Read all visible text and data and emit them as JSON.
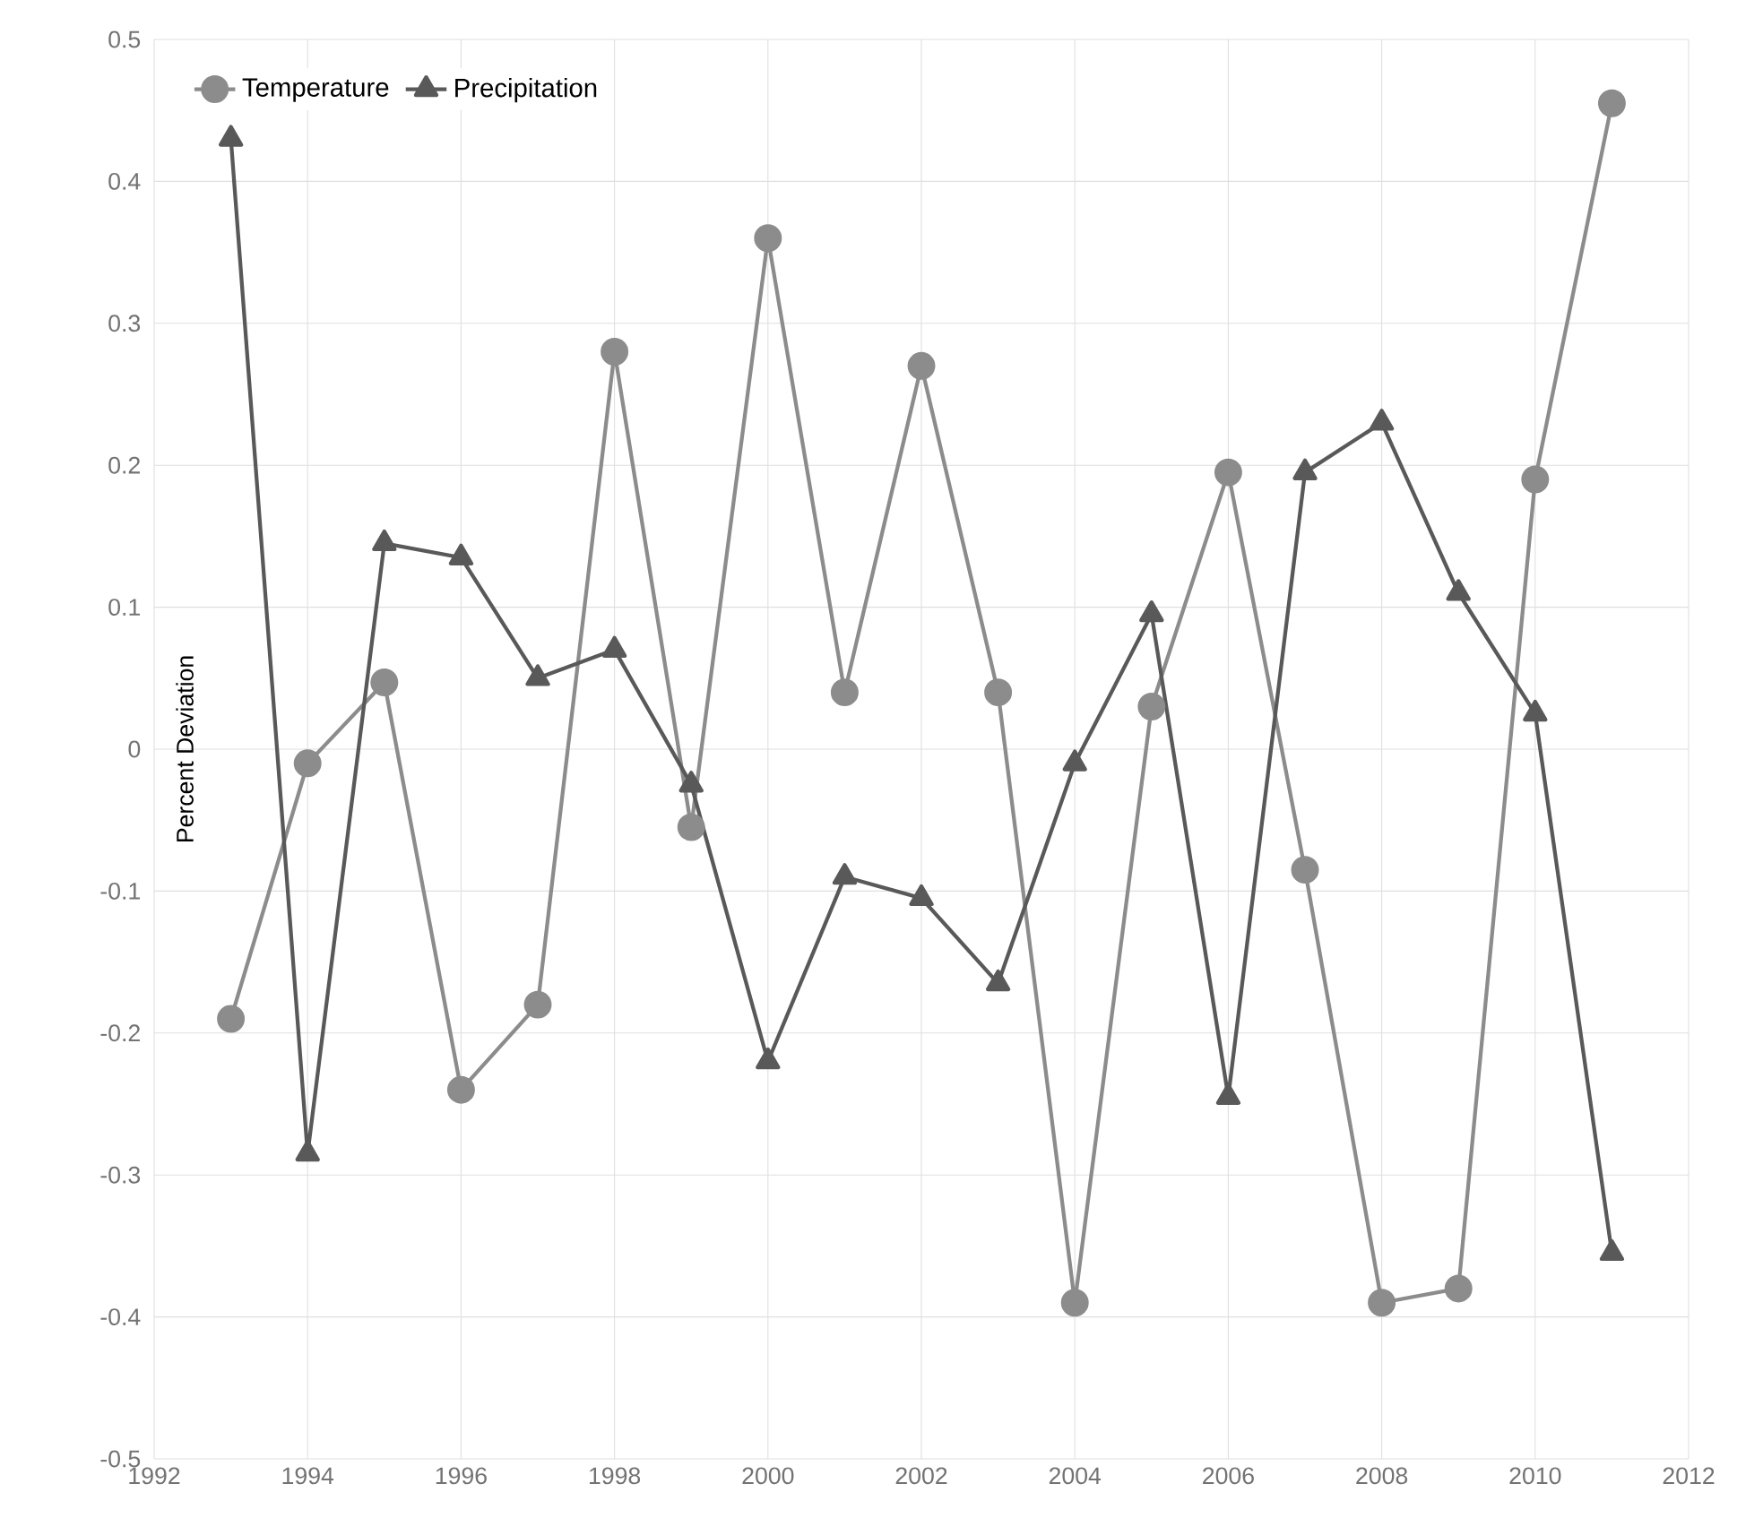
{
  "chart_data": {
    "type": "line",
    "ylabel": "Percent Deviation",
    "x": [
      1993,
      1994,
      1995,
      1996,
      1997,
      1998,
      1999,
      2000,
      2001,
      2002,
      2003,
      2004,
      2005,
      2006,
      2007,
      2008,
      2009,
      2010,
      2011
    ],
    "series": [
      {
        "name": "Temperature",
        "color": "#8c8c8c",
        "marker": "circle",
        "values": [
          -0.19,
          -0.01,
          0.047,
          -0.24,
          -0.18,
          0.28,
          -0.055,
          0.36,
          0.04,
          0.27,
          0.04,
          -0.39,
          0.03,
          0.195,
          -0.085,
          -0.39,
          -0.38,
          0.19,
          0.455
        ]
      },
      {
        "name": "Precipitation",
        "color": "#595959",
        "marker": "triangle",
        "values": [
          0.43,
          -0.285,
          0.145,
          0.135,
          0.05,
          0.07,
          -0.025,
          -0.22,
          -0.09,
          -0.105,
          -0.165,
          -0.01,
          0.095,
          -0.245,
          0.195,
          0.23,
          0.11,
          0.025,
          -0.355
        ]
      }
    ],
    "xlim": [
      1992,
      2012
    ],
    "ylim": [
      -0.5,
      0.5
    ],
    "xticks": [
      1992,
      1994,
      1996,
      1998,
      2000,
      2002,
      2004,
      2006,
      2008,
      2010,
      2012
    ],
    "yticks": [
      -0.5,
      -0.4,
      -0.3,
      -0.2,
      -0.1,
      0,
      0.1,
      0.2,
      0.3,
      0.4,
      0.5
    ],
    "grid": true,
    "legend": "top left",
    "line_style": "solid"
  }
}
